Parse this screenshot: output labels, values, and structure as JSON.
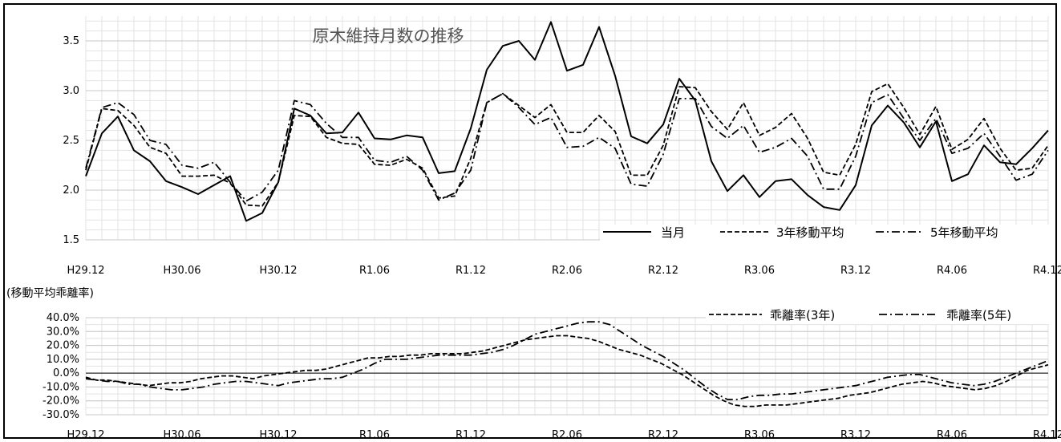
{
  "chart_data": [
    {
      "type": "line",
      "title": "原木維持月数の推移",
      "ylim": [
        1.5,
        3.75
      ],
      "yticks": [
        "1.5",
        "2.0",
        "2.5",
        "3.0",
        "3.5"
      ],
      "ytick_values": [
        1.5,
        2.0,
        2.5,
        3.0,
        3.5
      ],
      "xticks": [
        "H29.12",
        "H30.06",
        "H30.12",
        "R1.06",
        "R1.12",
        "R2.06",
        "R2.12",
        "R3.06",
        "R3.12",
        "R4.06",
        "R4.12"
      ],
      "grid": true,
      "legend_position": "bottom-right",
      "series": [
        {
          "name": "当月",
          "style": "solid",
          "values": [
            2.14,
            2.57,
            2.74,
            2.4,
            2.29,
            2.09,
            2.03,
            1.96,
            2.05,
            2.14,
            1.69,
            1.77,
            2.08,
            2.82,
            2.75,
            2.57,
            2.58,
            2.78,
            2.52,
            2.51,
            2.55,
            2.53,
            2.17,
            2.19,
            2.62,
            3.21,
            3.45,
            3.5,
            3.31,
            3.69,
            3.2,
            3.26,
            3.64,
            3.15,
            2.54,
            2.47,
            2.66,
            3.12,
            2.9,
            2.29,
            1.99,
            2.15,
            1.93,
            2.09,
            2.11,
            1.95,
            1.83,
            1.8,
            2.05,
            2.65,
            2.85,
            2.68,
            2.43,
            2.69,
            2.09,
            2.16,
            2.45,
            2.28,
            2.26,
            2.42,
            2.6
          ]
        },
        {
          "name": "3年移動平均",
          "style": "dash",
          "values": [
            2.2,
            2.82,
            2.8,
            2.65,
            2.43,
            2.37,
            2.14,
            2.14,
            2.15,
            2.07,
            1.85,
            1.84,
            2.08,
            2.75,
            2.74,
            2.53,
            2.47,
            2.46,
            2.26,
            2.25,
            2.31,
            2.22,
            1.92,
            1.94,
            2.32,
            2.88,
            2.97,
            2.85,
            2.73,
            2.86,
            2.58,
            2.58,
            2.75,
            2.59,
            2.15,
            2.15,
            2.45,
            3.04,
            3.03,
            2.79,
            2.61,
            2.88,
            2.55,
            2.63,
            2.77,
            2.52,
            2.18,
            2.15,
            2.46,
            2.99,
            3.07,
            2.83,
            2.56,
            2.84,
            2.41,
            2.51,
            2.72,
            2.42,
            2.2,
            2.22,
            2.45
          ]
        },
        {
          "name": "5年移動平均",
          "style": "dashdot",
          "values": [
            2.22,
            2.83,
            2.88,
            2.76,
            2.5,
            2.46,
            2.25,
            2.22,
            2.28,
            2.08,
            1.89,
            1.98,
            2.2,
            2.9,
            2.86,
            2.67,
            2.53,
            2.53,
            2.3,
            2.28,
            2.34,
            2.2,
            1.9,
            1.97,
            2.2,
            2.88,
            2.97,
            2.83,
            2.66,
            2.73,
            2.43,
            2.44,
            2.53,
            2.42,
            2.06,
            2.04,
            2.36,
            2.92,
            2.92,
            2.64,
            2.52,
            2.65,
            2.38,
            2.43,
            2.52,
            2.34,
            2.01,
            2.01,
            2.34,
            2.88,
            2.96,
            2.72,
            2.5,
            2.72,
            2.37,
            2.42,
            2.57,
            2.34,
            2.1,
            2.16,
            2.4
          ]
        }
      ]
    },
    {
      "type": "line",
      "ylabel": "(移動平均乖離率)",
      "ylim": [
        -30,
        40
      ],
      "yticks": [
        "40.0%",
        "30.0%",
        "20.0%",
        "10.0%",
        "0.0%",
        "-10.0%",
        "-20.0%",
        "-30.0%"
      ],
      "ytick_values": [
        40,
        30,
        20,
        10,
        0,
        -10,
        -20,
        -30
      ],
      "xticks": [
        "H29.12",
        "H30.06",
        "H30.12",
        "R1.06",
        "R1.12",
        "R2.06",
        "R2.12",
        "R3.06",
        "R3.12",
        "R4.06",
        "R4.12"
      ],
      "grid": true,
      "legend_position": "top-right",
      "series": [
        {
          "name": "乖離率(3年)",
          "style": "dash",
          "values": [
            -3,
            -5,
            -5,
            -6,
            -7,
            -8,
            -9,
            -8,
            -7,
            -7,
            -6,
            -4,
            -3,
            -2,
            -2,
            -3,
            -4,
            -2,
            -1,
            0,
            1,
            2,
            2,
            3,
            5,
            7,
            9,
            11,
            11,
            12,
            12,
            13,
            13,
            14,
            14,
            14,
            14,
            15,
            16,
            18,
            20,
            22,
            24,
            25,
            26,
            27,
            27,
            26,
            25,
            23,
            20,
            17,
            15,
            13,
            10,
            7,
            3,
            -1,
            -6,
            -11,
            -16,
            -20,
            -23,
            -24,
            -24,
            -23,
            -23,
            -23,
            -22,
            -21,
            -20,
            -19,
            -18,
            -16,
            -15,
            -14,
            -12,
            -10,
            -8,
            -7,
            -6,
            -7,
            -9,
            -10,
            -11,
            -12,
            -11,
            -9,
            -6,
            -2,
            2,
            4,
            6
          ]
        },
        {
          "name": "乖離率(5年)",
          "style": "dashdot",
          "values": [
            -4,
            -5,
            -6,
            -6,
            -8,
            -8,
            -10,
            -11,
            -12,
            -12,
            -11,
            -10,
            -8,
            -7,
            -6,
            -6,
            -7,
            -8,
            -9,
            -7,
            -6,
            -5,
            -4,
            -4,
            -3,
            0,
            3,
            7,
            10,
            10,
            10,
            11,
            12,
            13,
            13,
            13,
            13,
            14,
            15,
            17,
            20,
            24,
            28,
            30,
            32,
            34,
            36,
            37,
            37,
            35,
            30,
            25,
            20,
            16,
            12,
            7,
            2,
            -4,
            -10,
            -15,
            -19,
            -19,
            -17,
            -16,
            -16,
            -15,
            -15,
            -14,
            -13,
            -12,
            -11,
            -10,
            -9,
            -7,
            -5,
            -3,
            -2,
            -1,
            -1,
            -3,
            -5,
            -7,
            -8,
            -9,
            -8,
            -6,
            -3,
            0,
            3,
            6,
            9
          ]
        }
      ]
    }
  ]
}
